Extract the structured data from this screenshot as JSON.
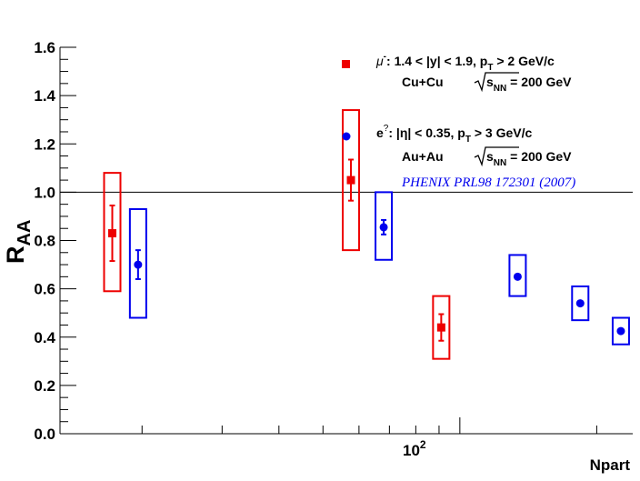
{
  "chart_data": {
    "type": "scatter",
    "xlabel": "Npart",
    "ylabel": "R",
    "ylabel_sub": "AA",
    "xscale": "log",
    "xlim": [
      13.2,
      240
    ],
    "ylim": [
      0,
      1.6
    ],
    "reference_line": 1.0,
    "y_ticks": [
      "0.0",
      "0.2",
      "0.4",
      "0.6",
      "0.8",
      "1.0",
      "1.2",
      "1.4",
      "1.6"
    ],
    "x_tick_label": {
      "base": "10",
      "exp": "2",
      "value": 100
    },
    "grid": false,
    "legend_position": "top-right",
    "series": [
      {
        "symbol": "μ",
        "symbol_sup": "-",
        "color": "#ee0000",
        "marker": "square",
        "legend_line1": ":  1.4 < |y| < 1.9, p",
        "legend_line1_sub": "T",
        "legend_line1_end": " > 2 GeV/c",
        "system": "Cu+Cu",
        "energy_lhs": "s",
        "energy_sub": "NN",
        "energy_rhs": " = 200 GeV",
        "points": [
          {
            "x": 17.2,
            "y": 0.83,
            "err": 0.115,
            "sys_lo": 0.59,
            "sys_hi": 1.08
          },
          {
            "x": 57.6,
            "y": 1.05,
            "err": 0.085,
            "sys_lo": 0.76,
            "sys_hi": 1.34
          },
          {
            "x": 91.0,
            "y": 0.44,
            "err": 0.055,
            "sys_lo": 0.31,
            "sys_hi": 0.57
          }
        ]
      },
      {
        "symbol": "e",
        "symbol_sup": "?",
        "color": "#0000ee",
        "marker": "circle",
        "legend_line1": ":  |η| < 0.35, p",
        "legend_line1_sub": "T",
        "legend_line1_end": " > 3 GeV/c",
        "system": "Au+Au",
        "energy_lhs": "s",
        "energy_sub": "NN",
        "energy_rhs": " = 200 GeV",
        "points": [
          {
            "x": 19.6,
            "y": 0.7,
            "err": 0.06,
            "sys_lo": 0.48,
            "sys_hi": 0.93
          },
          {
            "x": 68.0,
            "y": 0.855,
            "err": 0.03,
            "sys_lo": 0.72,
            "sys_hi": 1.0
          },
          {
            "x": 134.0,
            "y": 0.65,
            "err": 0.0,
            "sys_lo": 0.57,
            "sys_hi": 0.74
          },
          {
            "x": 184.0,
            "y": 0.54,
            "err": 0.0,
            "sys_lo": 0.47,
            "sys_hi": 0.61
          },
          {
            "x": 226.0,
            "y": 0.425,
            "err": 0.0,
            "sys_lo": 0.37,
            "sys_hi": 0.48
          }
        ]
      }
    ],
    "reference": "PHENIX PRL98 172301 (2007)"
  }
}
